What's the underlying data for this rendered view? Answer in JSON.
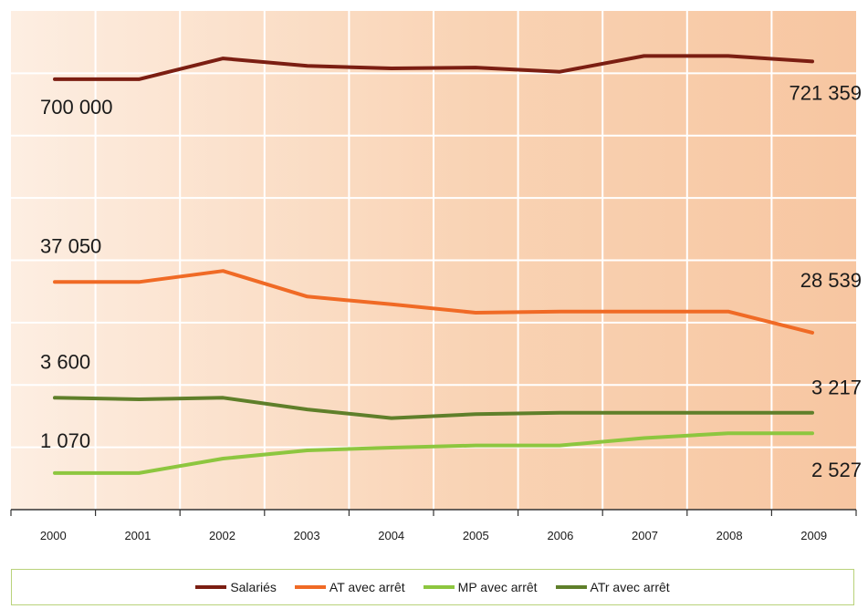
{
  "chart_data": {
    "type": "line",
    "x": [
      "2000",
      "2001",
      "2002",
      "2003",
      "2004",
      "2005",
      "2006",
      "2007",
      "2008",
      "2009"
    ],
    "series": [
      {
        "name": "Salariés",
        "color": "#7b1e12",
        "values": [
          700000,
          700000,
          725000,
          716000,
          713000,
          714000,
          709000,
          728000,
          728000,
          721359
        ]
      },
      {
        "name": "AT avec arrêt",
        "color": "#f06a25",
        "values": [
          37050,
          37050,
          38900,
          34600,
          33300,
          31900,
          32100,
          32100,
          32100,
          28539
        ]
      },
      {
        "name": "MP avec arrêt",
        "color": "#8dc63f",
        "values": [
          1070,
          1070,
          1600,
          1900,
          2000,
          2080,
          2080,
          2350,
          2527,
          2527
        ]
      },
      {
        "name": "ATr avec arrêt",
        "color": "#5f7f2a",
        "values": [
          3600,
          3560,
          3600,
          3300,
          3080,
          3180,
          3217,
          3217,
          3217,
          3217
        ]
      }
    ],
    "labels": [
      {
        "text": "700 000",
        "series": 0,
        "at": "start"
      },
      {
        "text": "721 359",
        "series": 0,
        "at": "end"
      },
      {
        "text": "37 050",
        "series": 1,
        "at": "start"
      },
      {
        "text": "28 539",
        "series": 1,
        "at": "end"
      },
      {
        "text": "3 600",
        "series": 3,
        "at": "start"
      },
      {
        "text": "3 217",
        "series": 3,
        "at": "end"
      },
      {
        "text": "1 070",
        "series": 2,
        "at": "start"
      },
      {
        "text": "2 527",
        "series": 2,
        "at": "end"
      }
    ],
    "grid": true,
    "legend_position": "bottom",
    "y_axis": "none, broken scale per series"
  }
}
